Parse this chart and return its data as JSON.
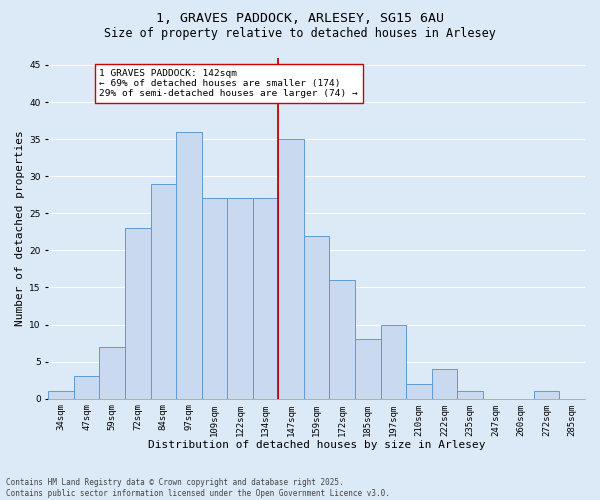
{
  "title": "1, GRAVES PADDOCK, ARLESEY, SG15 6AU",
  "subtitle": "Size of property relative to detached houses in Arlesey",
  "xlabel": "Distribution of detached houses by size in Arlesey",
  "ylabel": "Number of detached properties",
  "categories": [
    "34sqm",
    "47sqm",
    "59sqm",
    "72sqm",
    "84sqm",
    "97sqm",
    "109sqm",
    "122sqm",
    "134sqm",
    "147sqm",
    "159sqm",
    "172sqm",
    "185sqm",
    "197sqm",
    "210sqm",
    "222sqm",
    "235sqm",
    "247sqm",
    "260sqm",
    "272sqm",
    "285sqm"
  ],
  "values": [
    1,
    3,
    7,
    23,
    29,
    36,
    27,
    27,
    27,
    35,
    22,
    16,
    8,
    10,
    2,
    4,
    1,
    0,
    0,
    1,
    0
  ],
  "bar_color": "#c9d9f0",
  "bar_edge_color": "#5b9bd5",
  "background_color": "#dce9f7",
  "grid_color": "#ffffff",
  "vline_x_idx": 9,
  "vline_color": "#cc0000",
  "annotation_text": "1 GRAVES PADDOCK: 142sqm\n← 69% of detached houses are smaller (174)\n29% of semi-detached houses are larger (74) →",
  "annotation_box_color": "#ffffff",
  "annotation_box_edge": "#cc0000",
  "ylim": [
    0,
    46
  ],
  "yticks": [
    0,
    5,
    10,
    15,
    20,
    25,
    30,
    35,
    40,
    45
  ],
  "footnote": "Contains HM Land Registry data © Crown copyright and database right 2025.\nContains public sector information licensed under the Open Government Licence v3.0.",
  "title_fontsize": 9.5,
  "subtitle_fontsize": 8.5,
  "label_fontsize": 8,
  "tick_fontsize": 6.5,
  "footnote_fontsize": 5.5,
  "annotation_fontsize": 6.8
}
